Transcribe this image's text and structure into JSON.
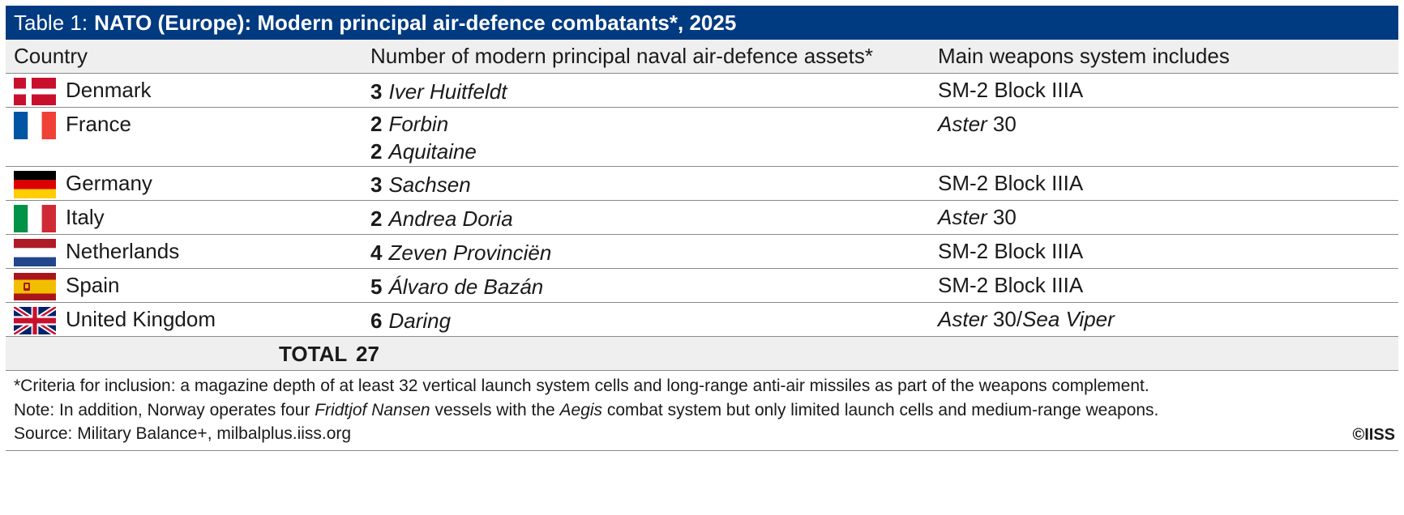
{
  "title": {
    "prefix": "Table 1:",
    "main": "NATO (Europe): Modern principal air-defence combatants*, 2025"
  },
  "columns": {
    "country": "Country",
    "assets": "Number of modern principal naval air-defence assets*",
    "weapons": "Main weapons system includes"
  },
  "rows": [
    {
      "country": "Denmark",
      "flag_icon": "denmark-flag-icon",
      "assets": [
        {
          "count": "3",
          "name": "Iver Huitfeldt"
        }
      ],
      "weapons": {
        "italic": "",
        "plain": "SM-2 Block IIIA",
        "sep": "",
        "italic2": ""
      }
    },
    {
      "country": "France",
      "flag_icon": "france-flag-icon",
      "assets": [
        {
          "count": "2",
          "name": "Forbin"
        },
        {
          "count": "2",
          "name": "Aquitaine"
        }
      ],
      "weapons": {
        "italic": "Aster",
        "plain": " 30",
        "sep": "",
        "italic2": ""
      }
    },
    {
      "country": "Germany",
      "flag_icon": "germany-flag-icon",
      "assets": [
        {
          "count": "3",
          "name": "Sachsen"
        }
      ],
      "weapons": {
        "italic": "",
        "plain": "SM-2 Block IIIA",
        "sep": "",
        "italic2": ""
      }
    },
    {
      "country": "Italy",
      "flag_icon": "italy-flag-icon",
      "assets": [
        {
          "count": "2",
          "name": "Andrea Doria"
        }
      ],
      "weapons": {
        "italic": "Aster",
        "plain": " 30",
        "sep": "",
        "italic2": ""
      }
    },
    {
      "country": "Netherlands",
      "flag_icon": "netherlands-flag-icon",
      "assets": [
        {
          "count": "4",
          "name": "Zeven Provinciën"
        }
      ],
      "weapons": {
        "italic": "",
        "plain": "SM-2 Block IIIA",
        "sep": "",
        "italic2": ""
      }
    },
    {
      "country": "Spain",
      "flag_icon": "spain-flag-icon",
      "assets": [
        {
          "count": "5",
          "name": "Álvaro de Bazán"
        }
      ],
      "weapons": {
        "italic": "",
        "plain": "SM-2 Block IIIA",
        "sep": "",
        "italic2": ""
      }
    },
    {
      "country": "United Kingdom",
      "flag_icon": "united-kingdom-flag-icon",
      "assets": [
        {
          "count": "6",
          "name": "Daring"
        }
      ],
      "weapons": {
        "italic": "Aster",
        "plain": " 30",
        "sep": "/",
        "italic2": "Sea Viper"
      }
    }
  ],
  "total": {
    "label": "TOTAL",
    "value": "27"
  },
  "notes": {
    "criteria": "*Criteria for inclusion: a magazine depth of at least 32 vertical launch system cells and long-range anti-air missiles as part of the weapons complement.",
    "note_prefix": "Note: In addition, Norway operates four ",
    "note_ship": "Fridtjof Nansen",
    "note_mid": " vessels with the ",
    "note_system": "Aegis",
    "note_suffix": " combat system but only limited launch cells and medium-range weapons.",
    "source": "Source: Military Balance+, milbalplus.iiss.org"
  },
  "credit": "©IISS",
  "colors": {
    "title_bg": "#003a80",
    "header_bg": "#efefef",
    "rule": "#8a8a8a"
  }
}
